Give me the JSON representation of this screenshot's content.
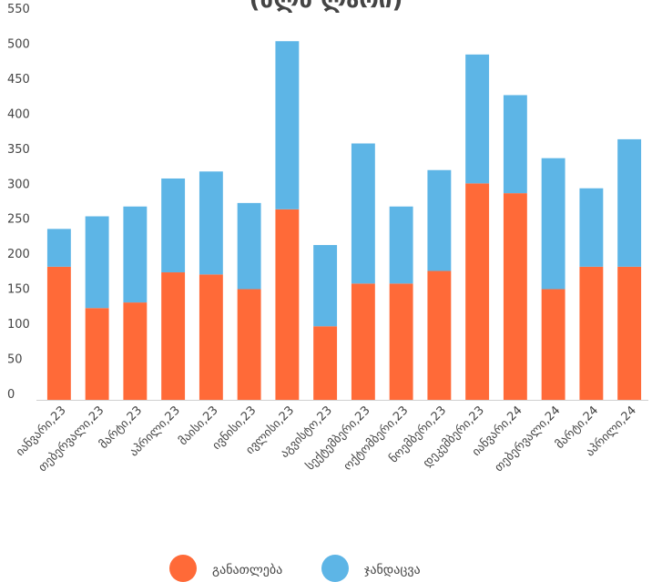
{
  "chart_data": {
    "type": "bar",
    "stacked": true,
    "title": "(მლნ ლარი)",
    "categories": [
      "იანვარი,23",
      "თებერვალი,23",
      "მარტი,23",
      "აპრილი,23",
      "მაისი,23",
      "ივნისი,23",
      "ივლისი,23",
      "აგვისტო,23",
      "სექტემბერი,23",
      "ოქტომბერი,23",
      "ნოემბერი,23",
      "დეკემბერი,23",
      "იანვარი,24",
      "თებერვალი,24",
      "მარტი,24",
      "აპრილი,24"
    ],
    "series": [
      {
        "name": "განათლება",
        "color": "#ff6a38",
        "values": [
          190,
          131,
          139,
          182,
          179,
          158,
          272,
          105,
          166,
          166,
          184,
          309,
          295,
          158,
          190,
          190
        ]
      },
      {
        "name": "ჯანდაცვა",
        "color": "#5db5e6",
        "values": [
          54,
          131,
          137,
          134,
          147,
          123,
          240,
          116,
          200,
          110,
          144,
          184,
          140,
          187,
          112,
          182
        ]
      }
    ],
    "yticks": [
      "0",
      "50",
      "100",
      "150",
      "200",
      "250",
      "300",
      "350",
      "400",
      "450",
      "500",
      "550"
    ],
    "ylim": [
      0,
      550
    ],
    "xlabel": "",
    "ylabel": "",
    "grid": false,
    "legend_position": "bottom"
  }
}
